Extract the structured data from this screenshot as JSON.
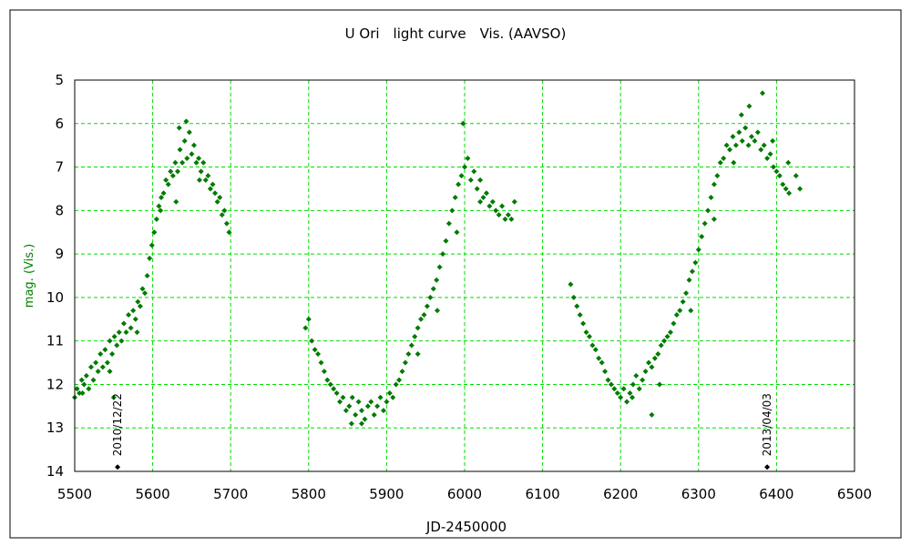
{
  "chart_data": {
    "type": "scatter",
    "title": "U Ori　light curve　Vis. (AAVSO)",
    "xlabel": "JD-2450000",
    "ylabel": "mag. (Vis.)",
    "xlim": [
      5500,
      6500
    ],
    "ylim": [
      5,
      14
    ],
    "y_inverted": true,
    "xticks": [
      5500,
      5600,
      5700,
      5800,
      5900,
      6000,
      6100,
      6200,
      6300,
      6400,
      6500
    ],
    "yticks": [
      5,
      6,
      7,
      8,
      9,
      10,
      11,
      12,
      13,
      14
    ],
    "grid": true,
    "colors": {
      "points": "#007a00",
      "grid": "#00dd00",
      "ylabel": "#008000",
      "annotation": "#000000",
      "frame": "#000000"
    },
    "series": [
      {
        "marker": "diamond",
        "points": [
          [
            5500,
            12.3
          ],
          [
            5503,
            12.1
          ],
          [
            5506,
            12.2
          ],
          [
            5509,
            11.9
          ],
          [
            5512,
            12.0
          ],
          [
            5515,
            11.8
          ],
          [
            5518,
            12.1
          ],
          [
            5521,
            11.6
          ],
          [
            5524,
            11.9
          ],
          [
            5527,
            11.5
          ],
          [
            5530,
            11.7
          ],
          [
            5533,
            11.3
          ],
          [
            5536,
            11.6
          ],
          [
            5539,
            11.2
          ],
          [
            5542,
            11.5
          ],
          [
            5545,
            11.0
          ],
          [
            5548,
            11.3
          ],
          [
            5551,
            10.9
          ],
          [
            5554,
            11.1
          ],
          [
            5557,
            10.8
          ],
          [
            5560,
            11.0
          ],
          [
            5563,
            10.6
          ],
          [
            5566,
            10.8
          ],
          [
            5569,
            10.4
          ],
          [
            5572,
            10.7
          ],
          [
            5575,
            10.3
          ],
          [
            5578,
            10.5
          ],
          [
            5581,
            10.1
          ],
          [
            5584,
            10.2
          ],
          [
            5587,
            9.8
          ],
          [
            5590,
            9.9
          ],
          [
            5593,
            9.5
          ],
          [
            5596,
            9.1
          ],
          [
            5599,
            8.8
          ],
          [
            5602,
            8.5
          ],
          [
            5605,
            8.2
          ],
          [
            5608,
            7.9
          ],
          [
            5611,
            7.7
          ],
          [
            5614,
            7.6
          ],
          [
            5617,
            7.3
          ],
          [
            5620,
            7.4
          ],
          [
            5623,
            7.1
          ],
          [
            5626,
            7.2
          ],
          [
            5629,
            6.9
          ],
          [
            5632,
            7.1
          ],
          [
            5635,
            6.6
          ],
          [
            5638,
            6.9
          ],
          [
            5641,
            6.4
          ],
          [
            5644,
            6.8
          ],
          [
            5647,
            6.2
          ],
          [
            5650,
            6.7
          ],
          [
            5653,
            6.5
          ],
          [
            5656,
            6.9
          ],
          [
            5659,
            6.8
          ],
          [
            5662,
            7.1
          ],
          [
            5665,
            6.9
          ],
          [
            5668,
            7.3
          ],
          [
            5671,
            7.2
          ],
          [
            5674,
            7.5
          ],
          [
            5677,
            7.4
          ],
          [
            5680,
            7.6
          ],
          [
            5683,
            7.8
          ],
          [
            5686,
            7.7
          ],
          [
            5689,
            8.1
          ],
          [
            5692,
            8.0
          ],
          [
            5695,
            8.3
          ],
          [
            5698,
            8.5
          ],
          [
            5796,
            10.7
          ],
          [
            5800,
            10.5
          ],
          [
            5804,
            11.0
          ],
          [
            5808,
            11.2
          ],
          [
            5812,
            11.3
          ],
          [
            5816,
            11.5
          ],
          [
            5820,
            11.7
          ],
          [
            5824,
            11.9
          ],
          [
            5828,
            12.0
          ],
          [
            5832,
            12.1
          ],
          [
            5836,
            12.2
          ],
          [
            5840,
            12.4
          ],
          [
            5844,
            12.3
          ],
          [
            5848,
            12.6
          ],
          [
            5852,
            12.5
          ],
          [
            5856,
            12.3
          ],
          [
            5860,
            12.7
          ],
          [
            5864,
            12.4
          ],
          [
            5868,
            12.6
          ],
          [
            5872,
            12.8
          ],
          [
            5876,
            12.5
          ],
          [
            5880,
            12.4
          ],
          [
            5884,
            12.7
          ],
          [
            5888,
            12.5
          ],
          [
            5892,
            12.3
          ],
          [
            5896,
            12.6
          ],
          [
            5900,
            12.4
          ],
          [
            5904,
            12.2
          ],
          [
            5908,
            12.3
          ],
          [
            5912,
            12.0
          ],
          [
            5916,
            11.9
          ],
          [
            5920,
            11.7
          ],
          [
            5924,
            11.5
          ],
          [
            5928,
            11.3
          ],
          [
            5932,
            11.1
          ],
          [
            5936,
            10.9
          ],
          [
            5940,
            10.7
          ],
          [
            5944,
            10.5
          ],
          [
            5948,
            10.4
          ],
          [
            5952,
            10.2
          ],
          [
            5956,
            10.0
          ],
          [
            5960,
            9.8
          ],
          [
            5964,
            9.6
          ],
          [
            5968,
            9.3
          ],
          [
            5972,
            9.0
          ],
          [
            5976,
            8.7
          ],
          [
            5980,
            8.3
          ],
          [
            5984,
            8.0
          ],
          [
            5988,
            7.7
          ],
          [
            5992,
            7.4
          ],
          [
            5996,
            7.2
          ],
          [
            6000,
            7.0
          ],
          [
            6004,
            6.8
          ],
          [
            6008,
            7.3
          ],
          [
            6012,
            7.1
          ],
          [
            6016,
            7.5
          ],
          [
            6020,
            7.3
          ],
          [
            6024,
            7.7
          ],
          [
            6028,
            7.6
          ],
          [
            6032,
            7.9
          ],
          [
            6036,
            7.8
          ],
          [
            6040,
            8.0
          ],
          [
            6044,
            8.1
          ],
          [
            6048,
            7.9
          ],
          [
            6052,
            8.2
          ],
          [
            6056,
            8.1
          ],
          [
            6060,
            8.2
          ],
          [
            6064,
            7.8
          ],
          [
            6136,
            9.7
          ],
          [
            6140,
            10.0
          ],
          [
            6144,
            10.2
          ],
          [
            6148,
            10.4
          ],
          [
            6152,
            10.6
          ],
          [
            6156,
            10.8
          ],
          [
            6160,
            10.9
          ],
          [
            6164,
            11.1
          ],
          [
            6168,
            11.2
          ],
          [
            6172,
            11.4
          ],
          [
            6176,
            11.5
          ],
          [
            6180,
            11.7
          ],
          [
            6184,
            11.9
          ],
          [
            6188,
            12.0
          ],
          [
            6192,
            12.1
          ],
          [
            6196,
            12.2
          ],
          [
            6200,
            12.3
          ],
          [
            6204,
            12.1
          ],
          [
            6208,
            12.4
          ],
          [
            6212,
            12.2
          ],
          [
            6216,
            12.0
          ],
          [
            6220,
            11.8
          ],
          [
            6224,
            12.1
          ],
          [
            6228,
            11.9
          ],
          [
            6232,
            11.7
          ],
          [
            6236,
            11.5
          ],
          [
            6240,
            11.6
          ],
          [
            6244,
            11.4
          ],
          [
            6248,
            11.3
          ],
          [
            6252,
            11.1
          ],
          [
            6256,
            11.0
          ],
          [
            6260,
            10.9
          ],
          [
            6264,
            10.8
          ],
          [
            6268,
            10.6
          ],
          [
            6272,
            10.4
          ],
          [
            6276,
            10.3
          ],
          [
            6280,
            10.1
          ],
          [
            6284,
            9.9
          ],
          [
            6288,
            9.6
          ],
          [
            6292,
            9.4
          ],
          [
            6296,
            9.2
          ],
          [
            6300,
            8.9
          ],
          [
            6304,
            8.6
          ],
          [
            6308,
            8.3
          ],
          [
            6312,
            8.0
          ],
          [
            6316,
            7.7
          ],
          [
            6320,
            7.4
          ],
          [
            6324,
            7.2
          ],
          [
            6328,
            6.9
          ],
          [
            6332,
            6.8
          ],
          [
            6336,
            6.5
          ],
          [
            6340,
            6.6
          ],
          [
            6344,
            6.3
          ],
          [
            6348,
            6.5
          ],
          [
            6352,
            6.2
          ],
          [
            6356,
            6.4
          ],
          [
            6360,
            6.1
          ],
          [
            6364,
            6.5
          ],
          [
            6368,
            6.3
          ],
          [
            6372,
            6.4
          ],
          [
            6376,
            6.2
          ],
          [
            6380,
            6.6
          ],
          [
            6384,
            6.5
          ],
          [
            6388,
            6.8
          ],
          [
            6392,
            6.7
          ],
          [
            6396,
            7.0
          ],
          [
            6400,
            7.1
          ],
          [
            6404,
            7.2
          ],
          [
            6408,
            7.4
          ],
          [
            6412,
            7.5
          ],
          [
            6416,
            7.6
          ],
          [
            5550,
            12.3
          ],
          [
            5634,
            6.1
          ],
          [
            5643,
            5.95
          ],
          [
            5998,
            6.0
          ],
          [
            6365,
            5.6
          ],
          [
            6382,
            5.3
          ],
          [
            6355,
            5.8
          ],
          [
            6240,
            12.7
          ],
          [
            5855,
            12.9
          ],
          [
            5868,
            12.9
          ],
          [
            5510,
            12.2
          ],
          [
            5545,
            11.7
          ],
          [
            5580,
            10.8
          ],
          [
            5610,
            8.0
          ],
          [
            5630,
            7.8
          ],
          [
            5660,
            7.3
          ],
          [
            5940,
            11.3
          ],
          [
            5965,
            10.3
          ],
          [
            5990,
            8.5
          ],
          [
            6020,
            7.8
          ],
          [
            6215,
            12.3
          ],
          [
            6250,
            12.0
          ],
          [
            6290,
            10.3
          ],
          [
            6320,
            8.2
          ],
          [
            6345,
            6.9
          ],
          [
            6395,
            6.4
          ],
          [
            6415,
            6.9
          ],
          [
            6430,
            7.5
          ],
          [
            6425,
            7.2
          ]
        ]
      }
    ],
    "annotations": [
      {
        "text": "2010/12/22",
        "x": 5555,
        "y": 13.9
      },
      {
        "text": "2013/04/03",
        "x": 6388,
        "y": 13.9
      }
    ]
  }
}
